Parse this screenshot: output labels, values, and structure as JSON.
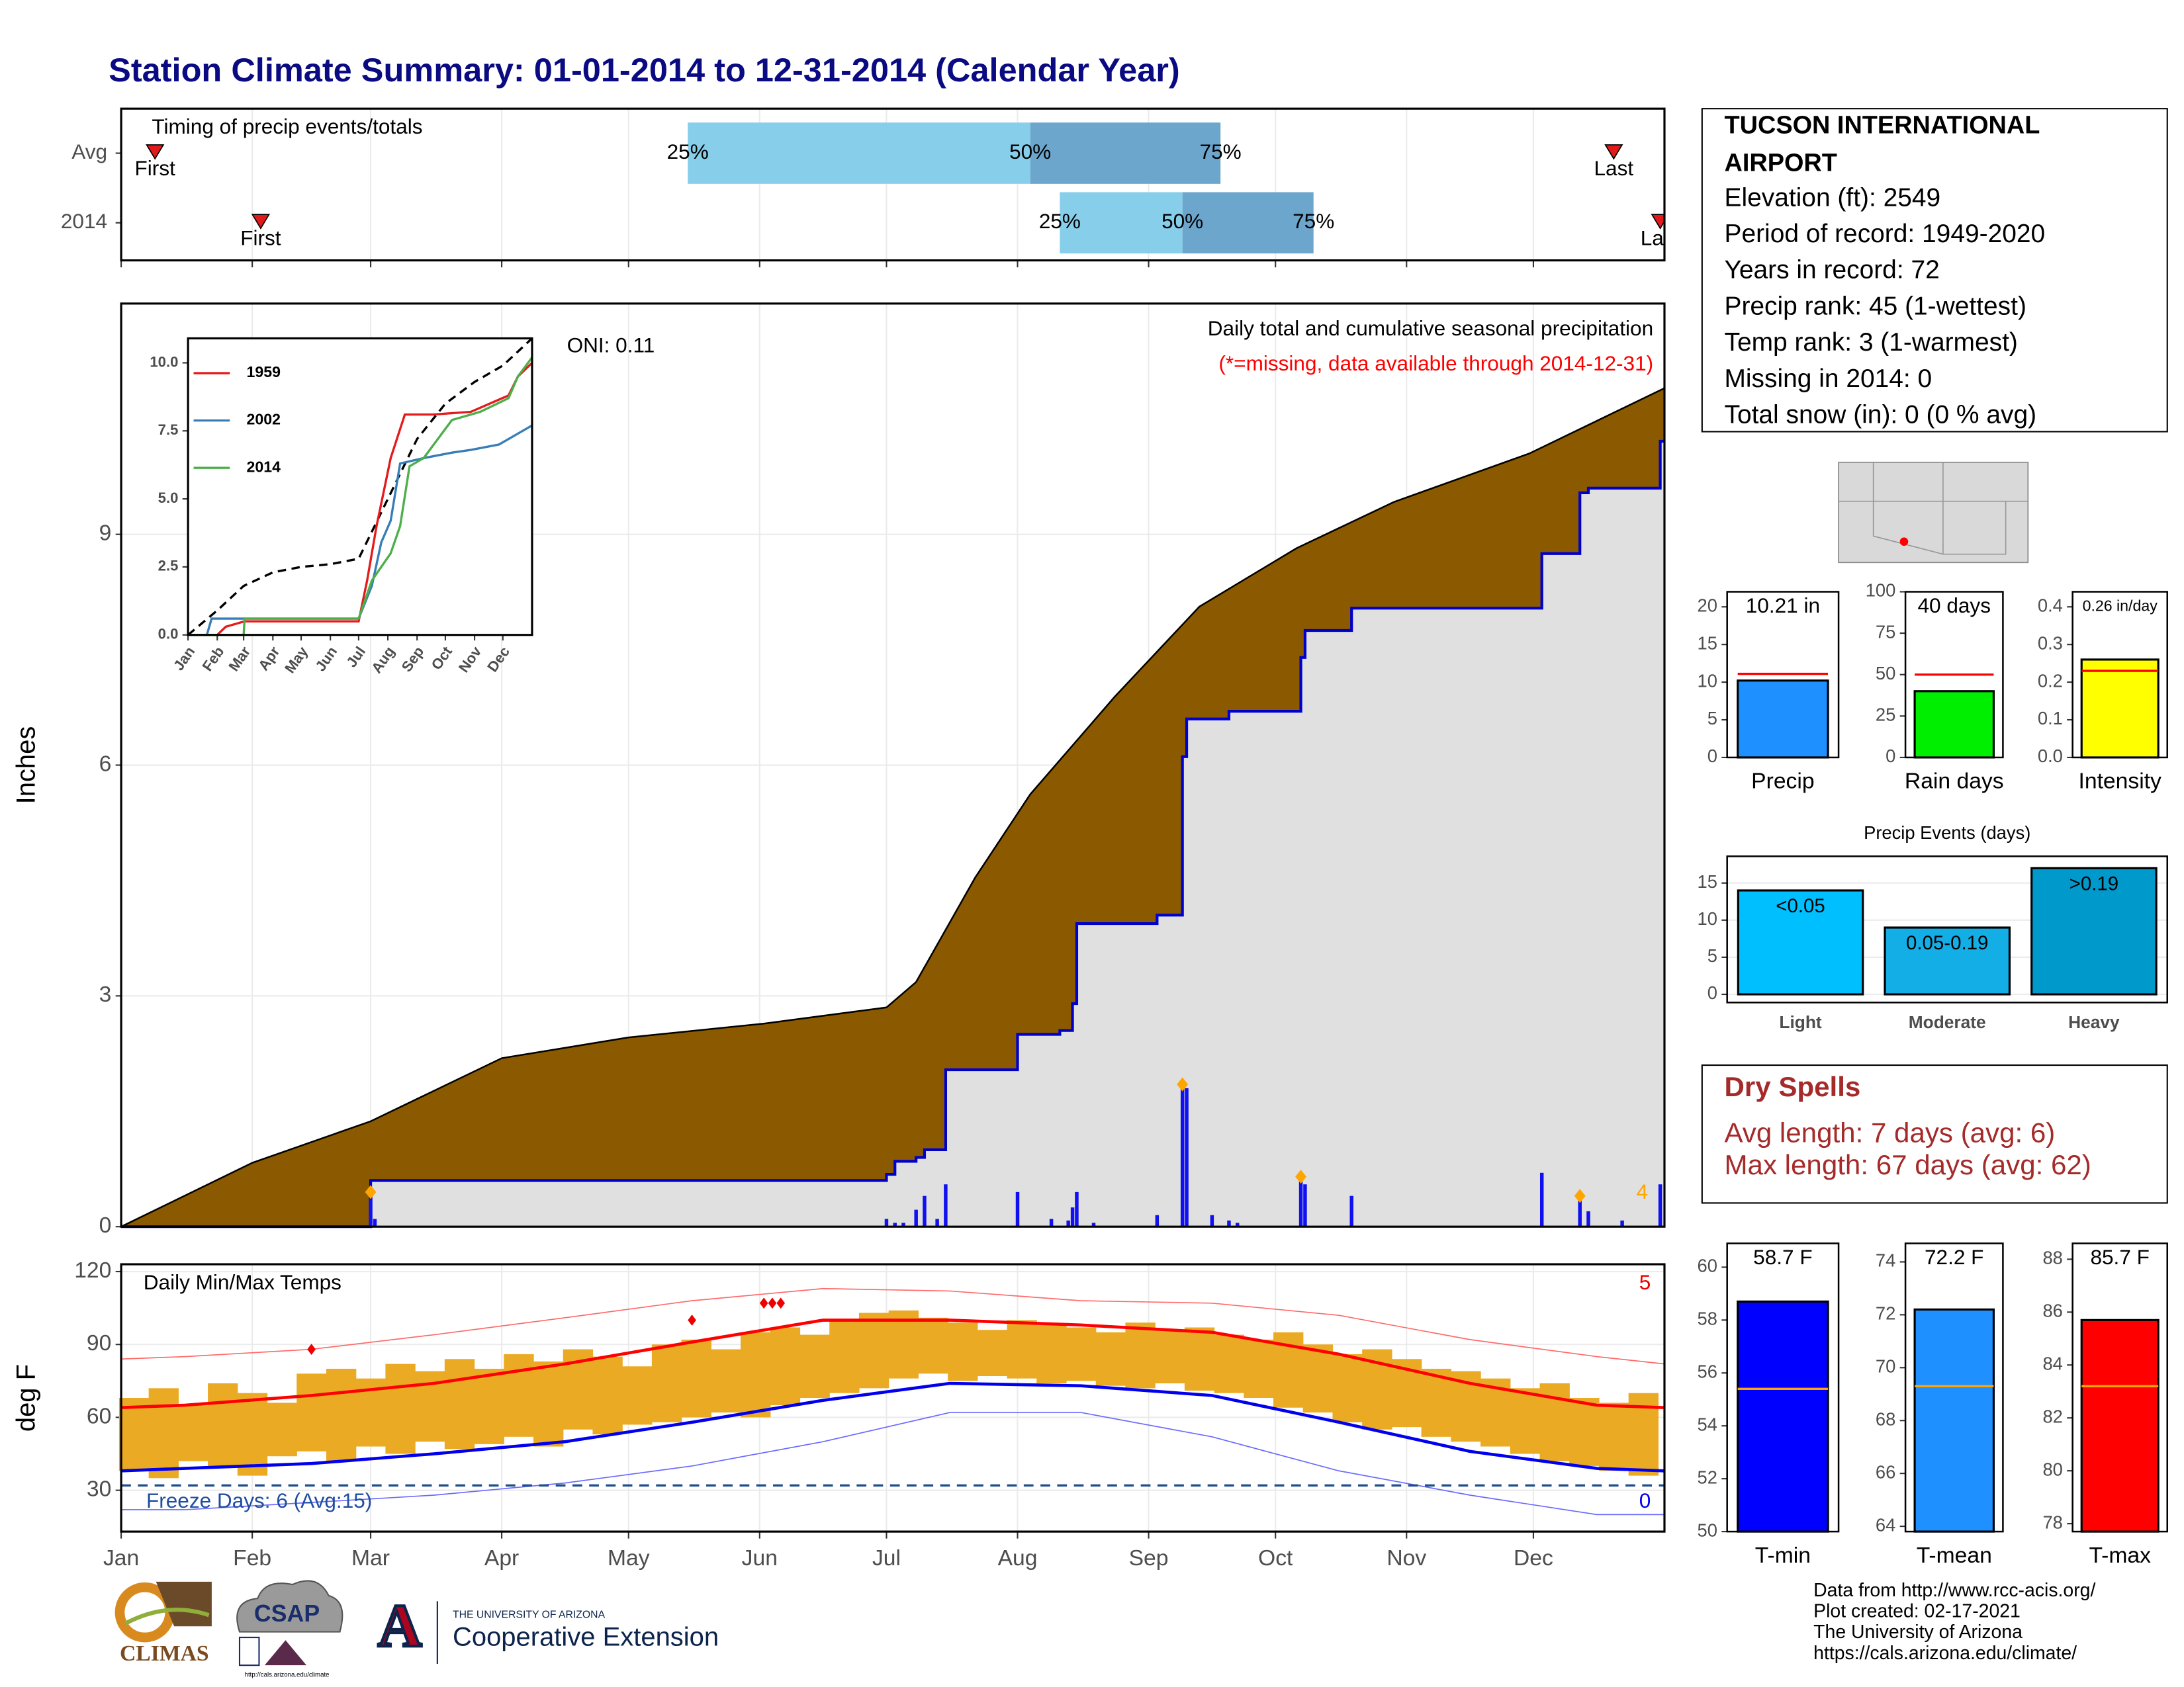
{
  "title": "Station Climate Summary: 01-01-2014 to 12-31-2014 (Calendar Year)",
  "chart_data": [
    {
      "type": "timing",
      "title": "Timing of precip events/totals",
      "xlim": [
        0,
        365
      ],
      "xticks": [
        0,
        31,
        59,
        90,
        120,
        151,
        181,
        212,
        243,
        273,
        304,
        334
      ],
      "categories": [
        "Avg",
        "2014"
      ],
      "first": [
        8,
        33
      ],
      "last": [
        353,
        364
      ],
      "q25": [
        134,
        222
      ],
      "q50": [
        215,
        251
      ],
      "q75": [
        260,
        282
      ],
      "first_label": "First",
      "last_label": "Last",
      "quantile_labels": [
        "25%",
        "50%",
        "75%"
      ],
      "colors": [
        "#87CEEB",
        "#6CA6CD"
      ],
      "marker_color": "#E31A1C"
    },
    {
      "type": "area",
      "subtitle": "Daily total and cumulative seasonal precipitation",
      "note": "(*=missing, data available through 2014-12-31)",
      "annotation": "ONI: 0.11",
      "ylabel": "Inches",
      "xlim": [
        0,
        365
      ],
      "ylim": [
        0,
        12
      ],
      "yticks": [
        0,
        3,
        6,
        9
      ],
      "xticks": [
        0,
        31,
        59,
        90,
        120,
        151,
        181,
        212,
        243,
        273,
        304,
        334
      ],
      "avg_cumulative": {
        "color": "#8B5A00",
        "x": [
          0,
          31,
          59,
          90,
          120,
          152,
          181,
          188,
          202,
          215,
          235,
          255,
          278,
          301,
          333,
          365
        ],
        "values": [
          0,
          0.83,
          1.37,
          2.19,
          2.46,
          2.64,
          2.85,
          3.18,
          4.54,
          5.62,
          6.89,
          8.06,
          8.82,
          9.42,
          10.05,
          10.9
        ]
      },
      "cumulative": {
        "color": "#0000CD",
        "fill": "#E0E0E0",
        "x": [
          0,
          59,
          181,
          183,
          188,
          190,
          195,
          212,
          222,
          225,
          226,
          245,
          251,
          252,
          262,
          279,
          280,
          291,
          336,
          345,
          347,
          364,
          365
        ],
        "values": [
          0,
          0.6,
          0.68,
          0.85,
          0.9,
          1.0,
          2.04,
          2.5,
          2.55,
          2.9,
          3.94,
          4.05,
          6.11,
          6.6,
          6.7,
          7.4,
          7.75,
          8.04,
          8.75,
          9.54,
          9.6,
          10.21,
          10.21
        ]
      },
      "daily": {
        "color": "#1010F0",
        "x": [
          59,
          60,
          181,
          183,
          185,
          188,
          190,
          193,
          195,
          212,
          220,
          224,
          225,
          226,
          230,
          245,
          251,
          252,
          258,
          262,
          264,
          279,
          280,
          291,
          336,
          345,
          347,
          355,
          364
        ],
        "values": [
          0.45,
          0.1,
          0.1,
          0.05,
          0.05,
          0.22,
          0.4,
          0.1,
          0.55,
          0.45,
          0.1,
          0.08,
          0.25,
          0.45,
          0.05,
          0.15,
          1.85,
          1.8,
          0.15,
          0.08,
          0.05,
          0.65,
          0.55,
          0.4,
          0.7,
          0.4,
          0.2,
          0.08,
          0.55
        ]
      },
      "records": {
        "color": "#FFA500",
        "x": [
          59,
          251,
          279,
          345
        ],
        "values": [
          0.45,
          1.85,
          0.65,
          0.4
        ],
        "label": "4"
      }
    },
    {
      "type": "line",
      "xlim": [
        0,
        365
      ],
      "ylim": [
        0,
        10.9
      ],
      "yticks": [
        {
          "value": 0,
          "label": "0.0"
        },
        2.5,
        {
          "value": 5,
          "label": "5.0"
        },
        7.5,
        {
          "value": 10,
          "label": "10.0"
        }
      ],
      "xticks": [
        {
          "value": 0,
          "label": "Jan"
        },
        {
          "value": 31,
          "label": "Feb"
        },
        {
          "value": 59,
          "label": "Mar"
        },
        {
          "value": 90,
          "label": "Apr"
        },
        {
          "value": 120,
          "label": "May"
        },
        {
          "value": 151,
          "label": "Jun"
        },
        {
          "value": 181,
          "label": "Jul"
        },
        {
          "value": 212,
          "label": "Aug"
        },
        {
          "value": 243,
          "label": "Sep"
        },
        {
          "value": 273,
          "label": "Oct"
        },
        {
          "value": 304,
          "label": "Nov"
        },
        {
          "value": 334,
          "label": "Dec"
        }
      ],
      "series": [
        {
          "name": "1959",
          "color": "#E41A1C",
          "x": [
            0,
            31,
            40,
            60,
            181,
            190,
            200,
            215,
            230,
            260,
            300,
            340,
            350,
            365
          ],
          "values": [
            0,
            0,
            0.3,
            0.5,
            0.5,
            2,
            4,
            6.5,
            8.1,
            8.1,
            8.2,
            8.8,
            9.5,
            10
          ]
        },
        {
          "name": "2002",
          "color": "#377EB8",
          "x": [
            0,
            20,
            25,
            181,
            195,
            205,
            215,
            225,
            250,
            280,
            300,
            330,
            365
          ],
          "values": [
            0,
            0,
            0.6,
            0.6,
            1.8,
            3.4,
            4.2,
            6.3,
            6.5,
            6.7,
            6.8,
            7.0,
            7.7
          ]
        },
        {
          "name": "2014",
          "color": "#4DAF4A",
          "x": [
            0,
            59,
            60,
            181,
            195,
            215,
            225,
            235,
            250,
            280,
            310,
            340,
            350,
            365
          ],
          "values": [
            0,
            0,
            0.6,
            0.6,
            2.0,
            3.0,
            4.0,
            6.2,
            6.5,
            7.9,
            8.2,
            8.7,
            9.5,
            10.2
          ]
        }
      ],
      "average": {
        "color": "#000000",
        "x": [
          0,
          31,
          59,
          90,
          120,
          151,
          181,
          212,
          243,
          273,
          304,
          334,
          365
        ],
        "values": [
          0,
          0.9,
          1.8,
          2.3,
          2.5,
          2.6,
          2.8,
          5.0,
          7.2,
          8.5,
          9.3,
          9.9,
          10.9
        ]
      }
    },
    {
      "type": "range-bar",
      "title": "Daily Min/Max Temps",
      "ylabel": "deg F",
      "xlim": [
        0,
        365
      ],
      "ylim": [
        13,
        123
      ],
      "yticks": [
        30,
        60,
        90,
        120
      ],
      "xticks": [
        {
          "value": 0,
          "label": "Jan"
        },
        {
          "value": 31,
          "label": "Feb"
        },
        {
          "value": 59,
          "label": "Mar"
        },
        {
          "value": 90,
          "label": "Apr"
        },
        {
          "value": 120,
          "label": "May"
        },
        {
          "value": 151,
          "label": "Jun"
        },
        {
          "value": 181,
          "label": "Jul"
        },
        {
          "value": 212,
          "label": "Aug"
        },
        {
          "value": 243,
          "label": "Sep"
        },
        {
          "value": 273,
          "label": "Oct"
        },
        {
          "value": 304,
          "label": "Nov"
        },
        {
          "value": 334,
          "label": "Dec"
        }
      ],
      "bar_color": "#EBAA24",
      "x": [
        3,
        10,
        17,
        24,
        31,
        38,
        45,
        52,
        59,
        66,
        73,
        80,
        87,
        94,
        101,
        108,
        115,
        122,
        129,
        136,
        143,
        150,
        157,
        164,
        171,
        178,
        185,
        192,
        199,
        206,
        213,
        220,
        227,
        234,
        241,
        248,
        255,
        262,
        269,
        276,
        283,
        290,
        297,
        304,
        311,
        318,
        325,
        332,
        339,
        346,
        353,
        360
      ],
      "max": [
        68,
        72,
        65,
        74,
        70,
        66,
        78,
        80,
        76,
        82,
        79,
        84,
        80,
        86,
        83,
        88,
        85,
        81,
        90,
        92,
        88,
        95,
        97,
        94,
        100,
        103,
        104,
        101,
        99,
        96,
        100,
        98,
        97,
        95,
        99,
        96,
        97,
        94,
        92,
        95,
        90,
        86,
        88,
        84,
        80,
        79,
        76,
        72,
        74,
        68,
        66,
        70
      ],
      "min": [
        38,
        35,
        42,
        40,
        36,
        44,
        46,
        42,
        48,
        45,
        50,
        47,
        49,
        52,
        48,
        55,
        53,
        57,
        58,
        60,
        62,
        60,
        65,
        68,
        70,
        72,
        76,
        78,
        75,
        77,
        76,
        74,
        75,
        73,
        72,
        74,
        71,
        70,
        68,
        64,
        62,
        58,
        55,
        56,
        52,
        50,
        48,
        45,
        42,
        40,
        38,
        36
      ],
      "normals": {
        "x": [
          0,
          15,
          45,
          74,
          105,
          135,
          166,
          196,
          227,
          258,
          288,
          319,
          349,
          365
        ],
        "max": [
          64,
          65,
          69,
          74,
          82,
          91,
          100,
          100,
          98,
          95,
          86,
          74,
          65,
          64
        ],
        "min": [
          38,
          39,
          41,
          45,
          50,
          58,
          67,
          74,
          73,
          69,
          58,
          46,
          39,
          38
        ],
        "record_max": [
          84,
          85,
          88,
          94,
          101,
          108,
          113,
          112,
          108,
          107,
          102,
          92,
          85,
          82
        ],
        "record_min": [
          22,
          22,
          25,
          28,
          33,
          40,
          50,
          62,
          62,
          52,
          38,
          28,
          20,
          20
        ]
      },
      "record_highs": {
        "x": [
          45,
          135,
          152,
          154,
          156
        ],
        "values": [
          88,
          100,
          107,
          107,
          107
        ],
        "label": "5"
      },
      "freeze_line": 32,
      "freeze_text": "Freeze Days: 6 (Avg:15)",
      "freeze_record_label": "0"
    },
    {
      "type": "bar",
      "categories": [
        "Precip"
      ],
      "values": [
        10.21
      ],
      "value_labels": [
        "10.21 in"
      ],
      "color": "#1E90FF",
      "avg": 11.1,
      "avg_color": "#FF0000",
      "ylim": [
        0,
        22
      ],
      "yticks": [
        0,
        5,
        10,
        15,
        20
      ]
    },
    {
      "type": "bar",
      "categories": [
        "Rain days"
      ],
      "values": [
        40
      ],
      "value_labels": [
        "40 days"
      ],
      "color": "#00EE00",
      "avg": 50,
      "avg_color": "#FF0000",
      "ylim": [
        0,
        100
      ],
      "yticks": [
        0,
        25,
        50,
        75,
        100
      ]
    },
    {
      "type": "bar",
      "categories": [
        "Intensity"
      ],
      "values": [
        0.26
      ],
      "value_labels": [
        "0.26 in/day"
      ],
      "color": "#FFFF00",
      "avg": 0.23,
      "avg_color": "#FF0000",
      "ylim": [
        0,
        0.44
      ],
      "yticks": [
        {
          "value": 0,
          "label": "0.0"
        },
        0.1,
        0.2,
        0.3,
        0.4
      ]
    },
    {
      "type": "bar",
      "title": "Precip Events (days)",
      "categories": [
        "Light",
        "Moderate",
        "Heavy"
      ],
      "values": [
        14,
        9,
        17
      ],
      "bin_labels": [
        "<0.05",
        "0.05-0.19",
        ">0.19"
      ],
      "colors": [
        "#00BFFF",
        "#14AEE6",
        "#0099CC"
      ],
      "ylim": [
        -1.1,
        18.6
      ],
      "yticks": [
        0,
        5,
        10,
        15
      ],
      "grid": true
    },
    {
      "type": "bar",
      "categories": [
        "T-min"
      ],
      "values": [
        58.7
      ],
      "value_labels": [
        "58.7 F"
      ],
      "color": "#0000FF",
      "avg": 55.4,
      "avg_color": "#FFA500",
      "ylim": [
        50,
        60.9
      ],
      "yticks": [
        50,
        52,
        54,
        56,
        58,
        60
      ]
    },
    {
      "type": "bar",
      "categories": [
        "T-mean"
      ],
      "values": [
        72.2
      ],
      "value_labels": [
        "72.2 F"
      ],
      "color": "#1E90FF",
      "avg": 69.3,
      "avg_color": "#FFA500",
      "ylim": [
        63.8,
        74.7
      ],
      "yticks": [
        64,
        66,
        68,
        70,
        72,
        74
      ]
    },
    {
      "type": "bar",
      "categories": [
        "T-max"
      ],
      "values": [
        85.7
      ],
      "value_labels": [
        "85.7 F"
      ],
      "color": "#FF0000",
      "avg": 83.2,
      "avg_color": "#FFA500",
      "ylim": [
        77.7,
        88.6
      ],
      "yticks": [
        78,
        80,
        82,
        84,
        86,
        88
      ]
    }
  ],
  "station": {
    "name_lines": [
      "TUCSON INTERNATIONAL",
      "AIRPORT"
    ],
    "lines": [
      "Elevation (ft): 2549",
      "Period of record: 1949-2020",
      "Years in record: 72",
      "Precip rank: 45 (1-wettest)",
      "Temp rank: 3 (1-warmest)",
      "Missing in 2014: 0",
      "Total snow (in): 0 (0 % avg)"
    ]
  },
  "dry_spells": {
    "title": "Dry Spells",
    "lines": [
      "Avg length: 7 days (avg: 6)",
      "Max length: 67 days (avg: 62)"
    ]
  },
  "footer": [
    "Data from http://www.rcc-acis.org/",
    "Plot created: 02-17-2021",
    "The University of Arizona",
    "https://cals.arizona.edu/climate/"
  ],
  "logos": {
    "climas": "CLIMAS",
    "csap": "CSAP",
    "csap_url": "http://cals.arizona.edu/climate",
    "ua": "THE UNIVERSITY OF ARIZONA",
    "coop": "Cooperative Extension"
  }
}
